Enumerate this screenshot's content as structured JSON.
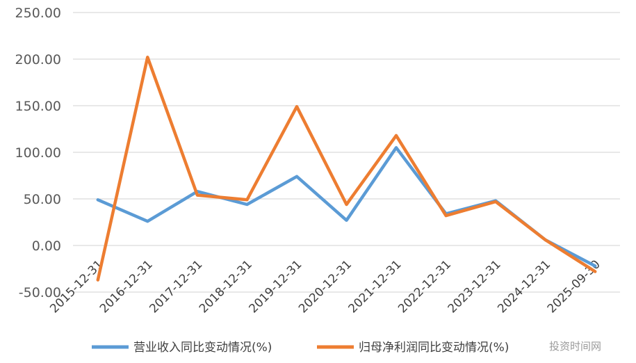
{
  "chart_data": {
    "type": "line",
    "categories": [
      "2015-12-31",
      "2016-12-31",
      "2017-12-31",
      "2018-12-31",
      "2019-12-31",
      "2020-12-31",
      "2021-12-31",
      "2022-12-31",
      "2023-12-31",
      "2024-12-31",
      "2025-09-30"
    ],
    "series": [
      {
        "name": "营业收入同比变动情况(%)",
        "color": "#5b9bd5",
        "values": [
          49,
          26,
          58,
          44,
          74,
          27,
          105,
          34,
          48,
          6,
          -22
        ]
      },
      {
        "name": "归母净利润同比变动情况(%)",
        "color": "#ed7d31",
        "values": [
          -37,
          202,
          54,
          49,
          149,
          44,
          118,
          32,
          47,
          6,
          -28
        ]
      }
    ],
    "yticks": [
      "250.00",
      "200.00",
      "150.00",
      "100.00",
      "50.00",
      "0.00",
      "-50.00"
    ],
    "ylim": [
      -50,
      250
    ],
    "grid": true,
    "legend_position": "bottom"
  },
  "watermark": "投资时间网"
}
